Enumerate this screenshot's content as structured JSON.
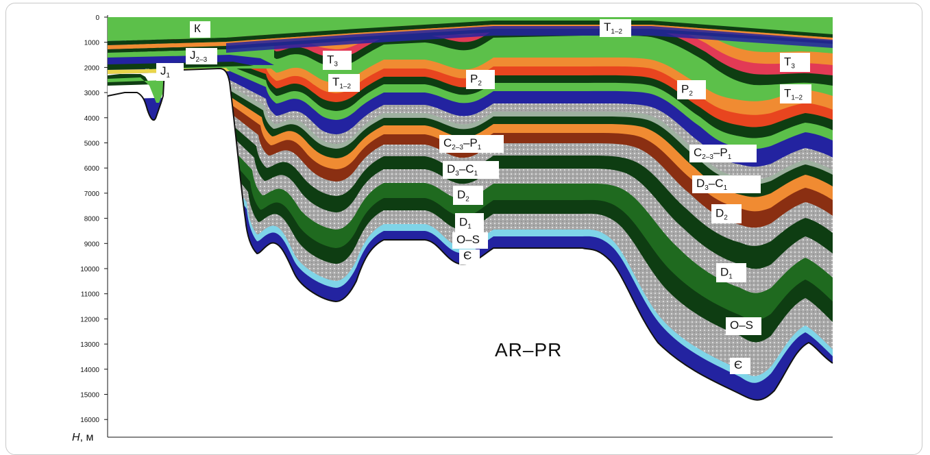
{
  "figure": {
    "axis_title": "H, м",
    "axis_title_var": "H",
    "axis_title_unit": ", м",
    "depth_ticks": [
      "0",
      "1000",
      "2000",
      "3000",
      "4000",
      "5000",
      "6000",
      "7000",
      "8000",
      "9000",
      "10000",
      "11000",
      "12000",
      "13000",
      "14000",
      "15000",
      "16000"
    ],
    "basement_label": "AR–PR",
    "colors": {
      "quaternary_green": "#5cc04a",
      "dark_green": "#0e3d12",
      "orange": "#f08b32",
      "red_orange": "#e8451f",
      "pink": "#e23a55",
      "gray": "#a8a8a8",
      "brown": "#8a2f12",
      "blue": "#2323a0",
      "light_blue": "#7fd4e8"
    }
  },
  "labels": [
    {
      "id": "K",
      "main": "К",
      "sub": ""
    },
    {
      "id": "J23",
      "main": "J",
      "sub": "2–3"
    },
    {
      "id": "J1",
      "main": "J",
      "sub": "1"
    },
    {
      "id": "T3a",
      "main": "T",
      "sub": "3"
    },
    {
      "id": "T12a",
      "main": "T",
      "sub": "1–2"
    },
    {
      "id": "P2a",
      "main": "P",
      "sub": "2"
    },
    {
      "id": "T12top",
      "main": "T",
      "sub": "1–2"
    },
    {
      "id": "P2b",
      "main": "P",
      "sub": "2"
    },
    {
      "id": "T3b",
      "main": "T",
      "sub": "3"
    },
    {
      "id": "T12b",
      "main": "T",
      "sub": "1–2"
    },
    {
      "id": "C23P1a",
      "parts": [
        "C",
        "2–3",
        "–P",
        "1"
      ]
    },
    {
      "id": "D3C1a",
      "parts": [
        "D",
        "3",
        "–C",
        "1"
      ]
    },
    {
      "id": "D2a",
      "main": "D",
      "sub": "2"
    },
    {
      "id": "D1a",
      "main": "D",
      "sub": "1"
    },
    {
      "id": "OSa",
      "main": "O–S",
      "sub": ""
    },
    {
      "id": "Ea",
      "main": "Є",
      "sub": ""
    },
    {
      "id": "C23P1b",
      "parts": [
        "C",
        "2–3",
        "–P",
        "1"
      ]
    },
    {
      "id": "D3C1b",
      "parts": [
        "D",
        "3",
        "–C",
        "1"
      ]
    },
    {
      "id": "D2b",
      "main": "D",
      "sub": "2"
    },
    {
      "id": "D1b",
      "main": "D",
      "sub": "1"
    },
    {
      "id": "OSb",
      "main": "O–S",
      "sub": ""
    },
    {
      "id": "Eb",
      "main": "Є",
      "sub": ""
    }
  ]
}
